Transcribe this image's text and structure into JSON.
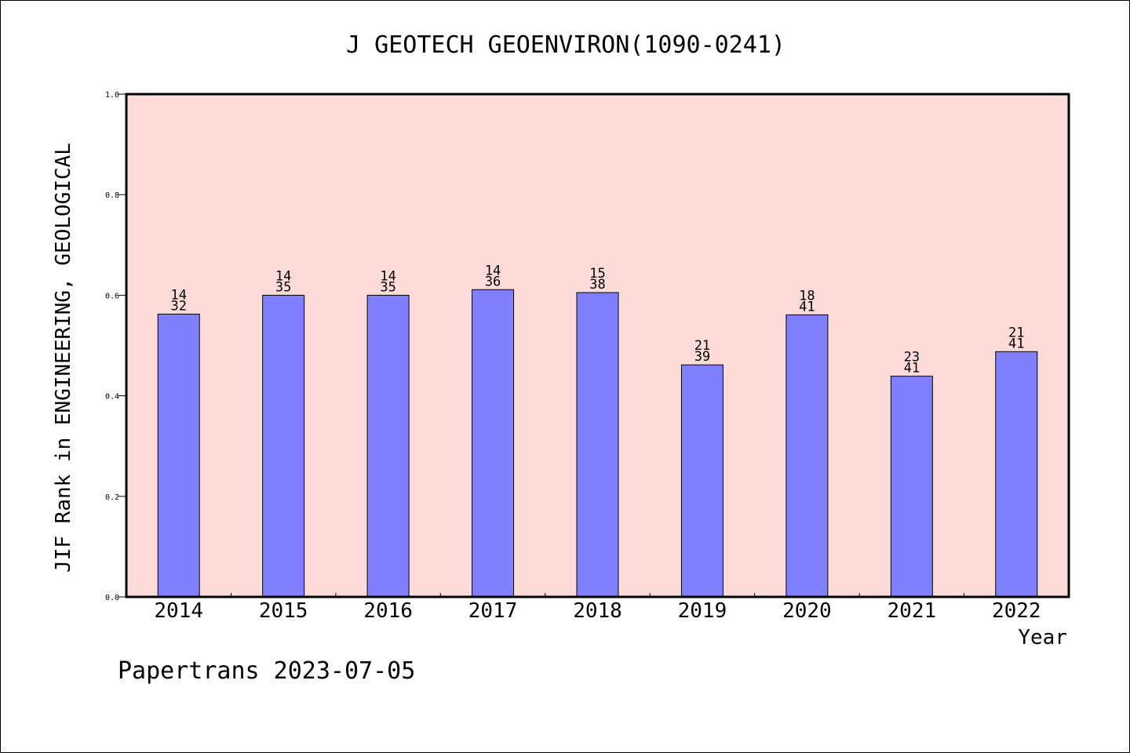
{
  "chart_data": {
    "type": "bar",
    "title": "J GEOTECH GEOENVIRON(1090-0241)",
    "xlabel": "Year",
    "ylabel": "JIF Rank in ENGINEERING, GEOLOGICAL",
    "ylim": [
      0,
      1.0
    ],
    "yticks": [
      "0.0",
      "0.2",
      "0.4",
      "0.6",
      "0.8",
      "1.0"
    ],
    "categories": [
      "2014",
      "2015",
      "2016",
      "2017",
      "2018",
      "2019",
      "2020",
      "2021",
      "2022"
    ],
    "values": [
      0.5625,
      0.6,
      0.6,
      0.6111,
      0.6053,
      0.4615,
      0.561,
      0.439,
      0.4878
    ],
    "rank": [
      "14",
      "14",
      "14",
      "14",
      "15",
      "21",
      "18",
      "23",
      "21"
    ],
    "total": [
      "32",
      "35",
      "35",
      "36",
      "38",
      "39",
      "41",
      "41",
      "41"
    ],
    "bar_color": "#8080ff",
    "plot_bg": "#fddbd8",
    "grid": false
  },
  "footer": "Papertrans 2023-07-05"
}
